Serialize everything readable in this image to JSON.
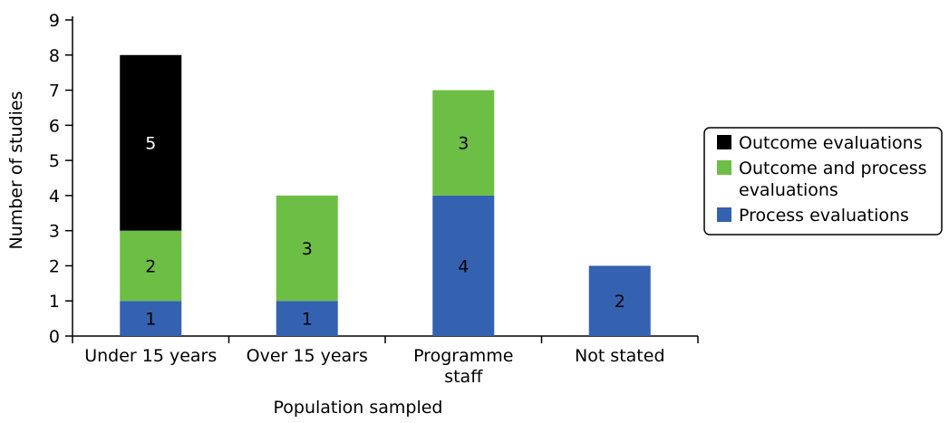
{
  "chart_data": {
    "type": "bar",
    "stacked": true,
    "categories": [
      "Under 15 years",
      "Over 15 years",
      "Programme staff",
      "Not stated"
    ],
    "category_lines": [
      [
        "Under 15 years"
      ],
      [
        "Over 15 years"
      ],
      [
        "Programme",
        "staff"
      ],
      [
        "Not stated"
      ]
    ],
    "series": [
      {
        "name": "Process evaluations",
        "values": [
          1,
          1,
          4,
          2
        ],
        "color": "#3461B0",
        "label_color": "#000000"
      },
      {
        "name": "Outcome and process evaluations",
        "values": [
          2,
          3,
          3,
          0
        ],
        "color": "#6DBE45",
        "label_color": "#000000"
      },
      {
        "name": "Outcome evaluations",
        "values": [
          5,
          0,
          0,
          0
        ],
        "color": "#000000",
        "label_color": "#ffffff"
      }
    ],
    "legend_order": [
      2,
      1,
      0
    ],
    "legend_lines": [
      [
        "Outcome evaluations"
      ],
      [
        "Outcome and process",
        "evaluations"
      ],
      [
        "Process evaluations"
      ]
    ],
    "xlabel": "Population sampled",
    "ylabel": "Number of studies",
    "ylim": [
      0,
      9
    ],
    "yticks": [
      0,
      1,
      2,
      3,
      4,
      5,
      6,
      7,
      8,
      9
    ],
    "grid": false,
    "legend_position": "right"
  }
}
